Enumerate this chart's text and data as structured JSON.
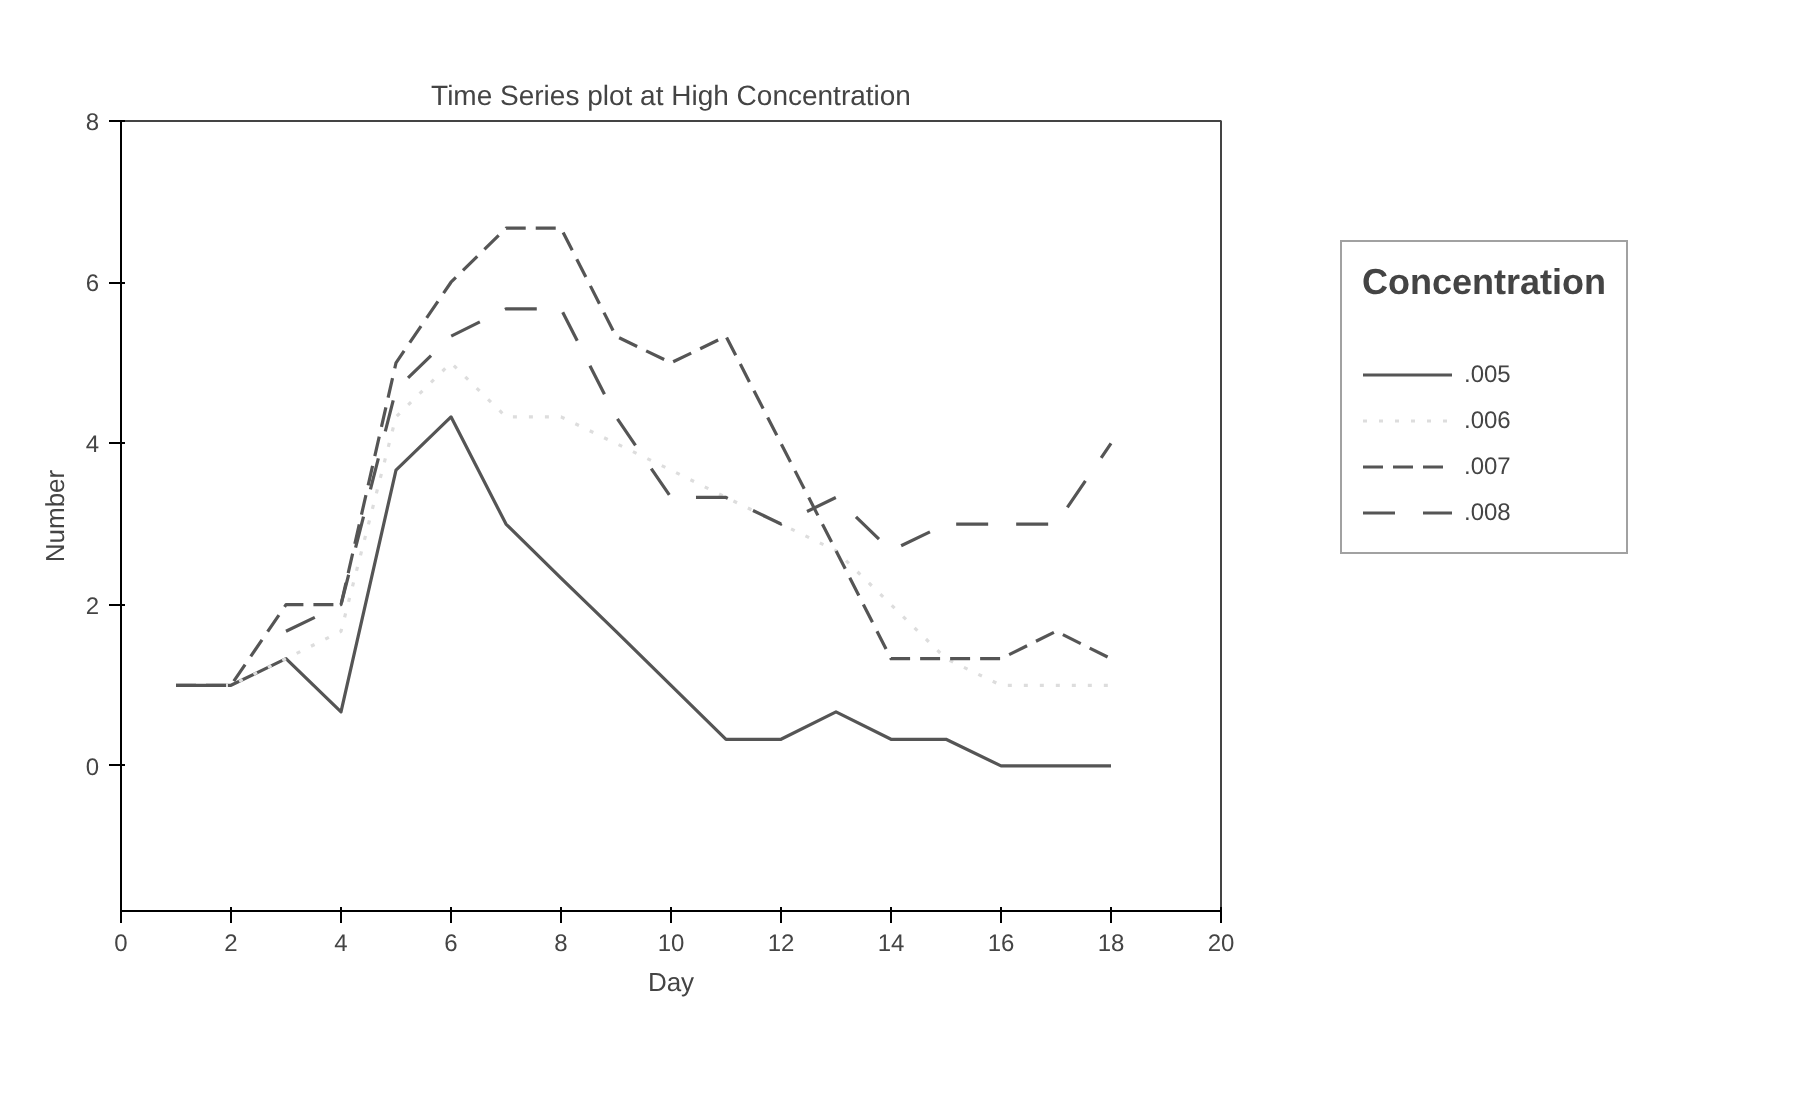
{
  "chart_data": {
    "type": "line",
    "title": "Time Series plot at High Concentration",
    "xlabel": "Day",
    "ylabel": "Number",
    "legend_title": "Concentration",
    "x": [
      1,
      2,
      3,
      4,
      5,
      6,
      7,
      8,
      9,
      10,
      11,
      12,
      13,
      14,
      15,
      16,
      17,
      18
    ],
    "series": [
      {
        "name": ".005",
        "color": "#555555",
        "line_style": "solid",
        "values": [
          1,
          1,
          1.33,
          0.67,
          3.67,
          4.33,
          3,
          2.33,
          1.67,
          1,
          0.33,
          0.33,
          0.67,
          0.33,
          0.33,
          0,
          0,
          0
        ]
      },
      {
        "name": ".006",
        "color": "#dddddd",
        "line_style": "dotted",
        "values": [
          1,
          1,
          1.33,
          1.67,
          4.33,
          5,
          4.33,
          4.33,
          4,
          3.67,
          3.33,
          3,
          2.67,
          2,
          1.33,
          1,
          1,
          1
        ]
      },
      {
        "name": ".007",
        "color": "#555555",
        "line_style": "dashed",
        "values": [
          1,
          1,
          2,
          2,
          5,
          6,
          6.67,
          6.67,
          5.33,
          5,
          5.33,
          4,
          2.67,
          1.33,
          1.33,
          1.33,
          1.67,
          1.33
        ]
      },
      {
        "name": ".008",
        "color": "#555555",
        "line_style": "dashed",
        "values": [
          null,
          null,
          1.67,
          2,
          4.67,
          5.33,
          5.67,
          5.67,
          4.33,
          3.33,
          3.33,
          3,
          3.33,
          2.67,
          3,
          3,
          3,
          4
        ]
      }
    ],
    "xlim": [
      0,
      20
    ],
    "xticks": [
      0,
      2,
      4,
      6,
      8,
      10,
      12,
      14,
      16,
      18,
      20
    ],
    "ylim": [
      -1.8,
      8
    ],
    "yticks": [
      0,
      2,
      4,
      6,
      8
    ],
    "grid": false,
    "legend": "right",
    "marker": "none"
  }
}
